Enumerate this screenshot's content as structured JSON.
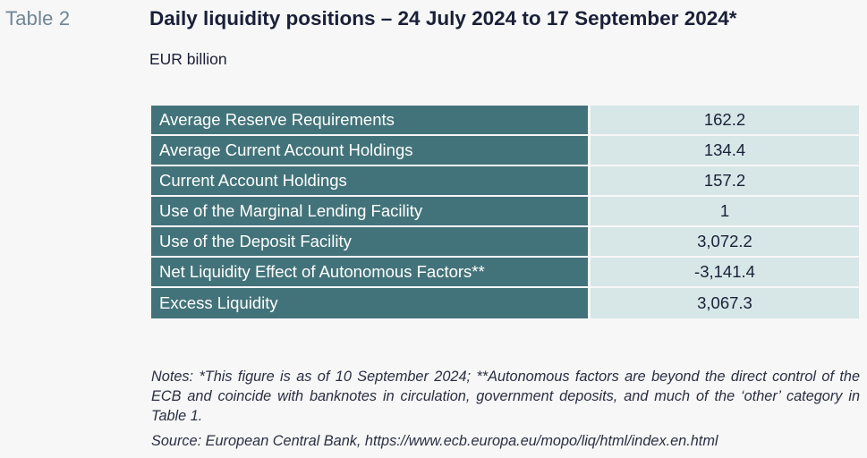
{
  "table_label": "Table 2",
  "title": "Daily liquidity positions – 24 July 2024 to 17 September 2024*",
  "unit": "EUR billion",
  "rows": [
    {
      "label": "Average Reserve Requirements",
      "value": "162.2"
    },
    {
      "label": "Average Current Account Holdings",
      "value": "134.4"
    },
    {
      "label": "Current Account Holdings",
      "value": "157.2"
    },
    {
      "label": "Use of the Marginal Lending Facility",
      "value": "1"
    },
    {
      "label": "Use of the Deposit Facility",
      "value": "3,072.2"
    },
    {
      "label": "Net Liquidity Effect of Autonomous Factors**",
      "value": "-3,141.4"
    },
    {
      "label": "Excess Liquidity",
      "value": "3,067.3"
    }
  ],
  "notes": "Notes: *This figure is as of 10 September 2024; **Autonomous factors are beyond the direct control of the ECB and coincide with banknotes in circulation, government deposits, and much of the ‘other’ category in Table 1.",
  "source": "Source: European Central Bank, https://www.ecb.europa.eu/mopo/liq/html/index.en.html",
  "colors": {
    "label_cell_bg": "#43737a",
    "value_cell_bg": "#d7e6e7",
    "table_label_text": "#6f8694",
    "title_text": "#1a2038"
  }
}
